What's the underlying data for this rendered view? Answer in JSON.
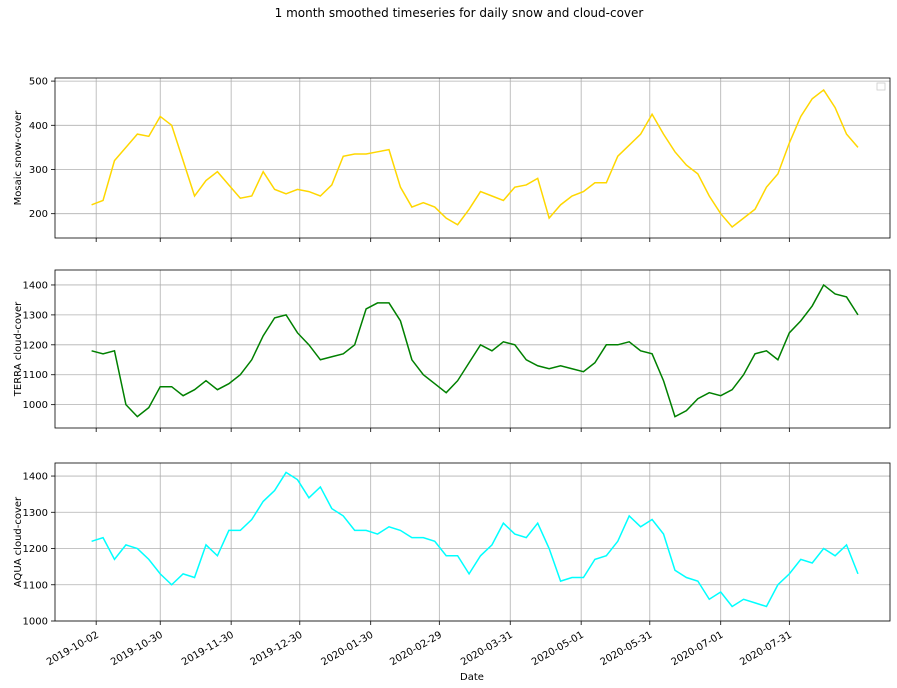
{
  "title": "1 month smoothed timeseries for daily snow and cloud-cover",
  "xlabel": "Date",
  "xlim": [
    "2019-09-14",
    "2020-09-13"
  ],
  "xticks": [
    "2019-10-02",
    "2019-10-30",
    "2019-11-30",
    "2019-12-30",
    "2020-01-30",
    "2020-02-29",
    "2020-03-31",
    "2020-05-01",
    "2020-05-31",
    "2020-07-01",
    "2020-07-31"
  ],
  "x": [
    "2019-09-30",
    "2019-10-05",
    "2019-10-10",
    "2019-10-15",
    "2019-10-20",
    "2019-10-25",
    "2019-10-30",
    "2019-11-04",
    "2019-11-09",
    "2019-11-14",
    "2019-11-19",
    "2019-11-24",
    "2019-11-29",
    "2019-12-04",
    "2019-12-09",
    "2019-12-14",
    "2019-12-19",
    "2019-12-24",
    "2019-12-29",
    "2020-01-03",
    "2020-01-08",
    "2020-01-13",
    "2020-01-18",
    "2020-01-23",
    "2020-01-28",
    "2020-02-02",
    "2020-02-07",
    "2020-02-12",
    "2020-02-17",
    "2020-02-22",
    "2020-02-27",
    "2020-03-03",
    "2020-03-08",
    "2020-03-13",
    "2020-03-18",
    "2020-03-23",
    "2020-03-28",
    "2020-04-02",
    "2020-04-07",
    "2020-04-12",
    "2020-04-17",
    "2020-04-22",
    "2020-04-27",
    "2020-05-02",
    "2020-05-07",
    "2020-05-12",
    "2020-05-17",
    "2020-05-22",
    "2020-05-27",
    "2020-06-01",
    "2020-06-06",
    "2020-06-11",
    "2020-06-16",
    "2020-06-21",
    "2020-06-26",
    "2020-07-01",
    "2020-07-06",
    "2020-07-11",
    "2020-07-16",
    "2020-07-21",
    "2020-07-26",
    "2020-07-31",
    "2020-08-05",
    "2020-08-10",
    "2020-08-15",
    "2020-08-20",
    "2020-08-25",
    "2020-08-30"
  ],
  "chart_data": [
    {
      "type": "line",
      "ylabel": "Mosaic snow-cover",
      "ylim": [
        145,
        507
      ],
      "yticks": [
        200,
        300,
        400,
        500
      ],
      "grid": true,
      "legend": "upper right",
      "series": [
        {
          "color": "#ffd700",
          "values": [
            220,
            230,
            320,
            350,
            380,
            375,
            420,
            400,
            320,
            240,
            275,
            295,
            265,
            235,
            240,
            295,
            255,
            245,
            255,
            250,
            240,
            265,
            330,
            335,
            335,
            340,
            345,
            260,
            215,
            225,
            215,
            190,
            175,
            210,
            250,
            240,
            230,
            260,
            265,
            280,
            190,
            220,
            240,
            250,
            270,
            270,
            330,
            355,
            380,
            425,
            380,
            340,
            310,
            290,
            240,
            200,
            170,
            190,
            210,
            260,
            290,
            360,
            420,
            460,
            480,
            440,
            380,
            350
          ]
        }
      ]
    },
    {
      "type": "line",
      "ylabel": "TERRA cloud-cover",
      "ylim": [
        922,
        1450
      ],
      "yticks": [
        1000,
        1100,
        1200,
        1300,
        1400
      ],
      "grid": true,
      "series": [
        {
          "color": "#008000",
          "values": [
            1180,
            1170,
            1180,
            1000,
            960,
            990,
            1060,
            1060,
            1030,
            1050,
            1080,
            1050,
            1070,
            1100,
            1150,
            1230,
            1290,
            1300,
            1240,
            1200,
            1150,
            1160,
            1170,
            1200,
            1320,
            1340,
            1340,
            1280,
            1150,
            1100,
            1070,
            1040,
            1080,
            1140,
            1200,
            1180,
            1210,
            1200,
            1150,
            1130,
            1120,
            1130,
            1120,
            1110,
            1140,
            1200,
            1200,
            1210,
            1180,
            1170,
            1080,
            960,
            980,
            1020,
            1040,
            1030,
            1050,
            1100,
            1170,
            1180,
            1150,
            1240,
            1280,
            1330,
            1400,
            1370,
            1360,
            1300
          ]
        }
      ]
    },
    {
      "type": "line",
      "ylabel": "AQUA cloud-cover",
      "ylim": [
        1000,
        1436
      ],
      "yticks": [
        1000,
        1100,
        1200,
        1300,
        1400
      ],
      "grid": true,
      "series": [
        {
          "color": "#00ffff",
          "values": [
            1220,
            1230,
            1170,
            1210,
            1200,
            1170,
            1130,
            1100,
            1130,
            1120,
            1210,
            1180,
            1250,
            1250,
            1280,
            1330,
            1360,
            1410,
            1390,
            1340,
            1370,
            1310,
            1290,
            1250,
            1250,
            1240,
            1260,
            1250,
            1230,
            1230,
            1220,
            1180,
            1180,
            1130,
            1180,
            1210,
            1270,
            1240,
            1230,
            1270,
            1200,
            1110,
            1120,
            1120,
            1170,
            1180,
            1220,
            1290,
            1260,
            1280,
            1240,
            1140,
            1120,
            1110,
            1060,
            1080,
            1040,
            1060,
            1050,
            1040,
            1100,
            1130,
            1170,
            1160,
            1200,
            1180,
            1210,
            1130
          ]
        }
      ]
    }
  ]
}
